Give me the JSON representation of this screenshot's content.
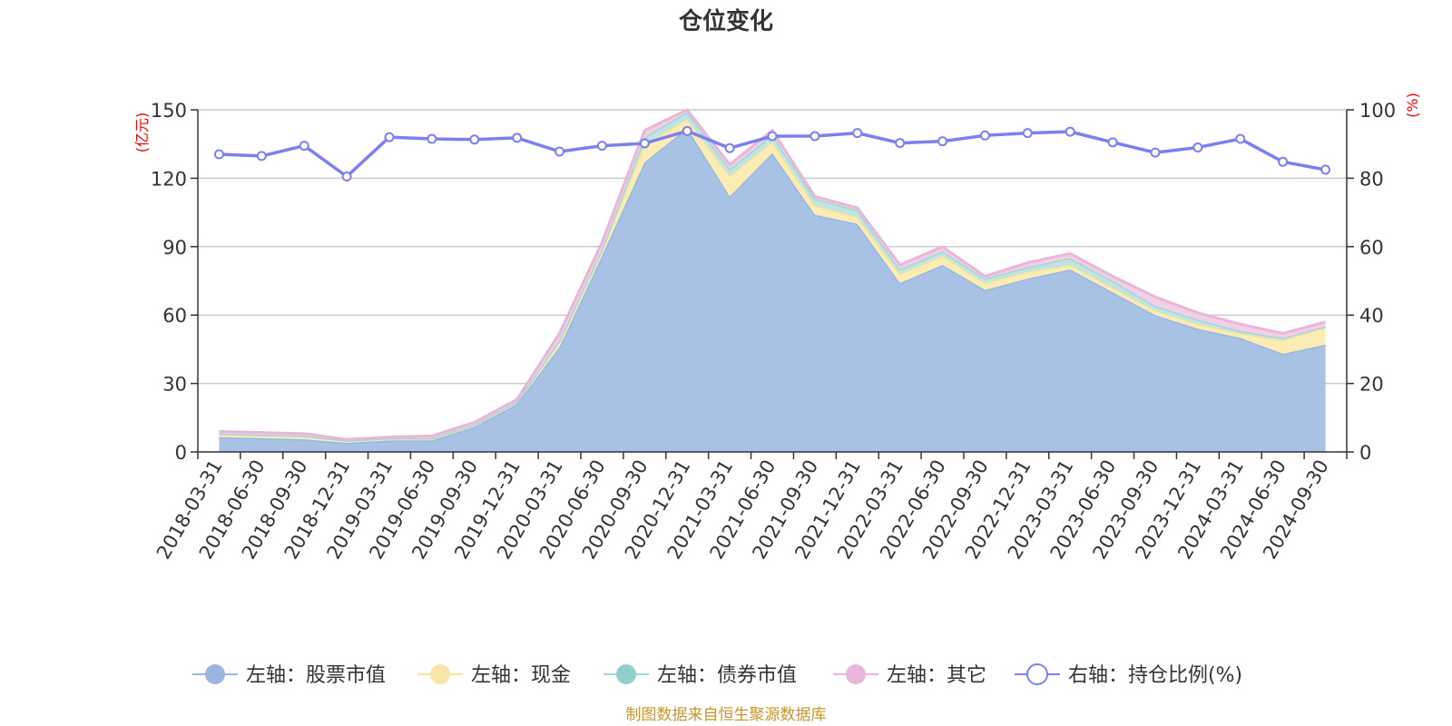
{
  "chart_data": {
    "type": "area",
    "title": "仓位变化",
    "source_note": "制图数据来自恒生聚源数据库",
    "left_unit": "(亿元)",
    "right_unit": "(%)",
    "left_axis": {
      "min": 0,
      "max": 150,
      "ticks": [
        "0",
        "30",
        "60",
        "90",
        "120",
        "150"
      ]
    },
    "right_axis": {
      "min": 0,
      "max": 100,
      "ticks": [
        "0",
        "20",
        "40",
        "60",
        "80",
        "100"
      ]
    },
    "categories": [
      "2018-03-31",
      "2018-06-30",
      "2018-09-30",
      "2018-12-31",
      "2019-03-31",
      "2019-06-30",
      "2019-09-30",
      "2019-12-31",
      "2020-03-31",
      "2020-06-30",
      "2020-09-30",
      "2020-12-31",
      "2021-03-31",
      "2021-06-30",
      "2021-09-30",
      "2021-12-31",
      "2022-03-31",
      "2022-06-30",
      "2022-09-30",
      "2022-12-31",
      "2023-03-31",
      "2023-06-30",
      "2023-09-30",
      "2023-12-31",
      "2024-03-31",
      "2024-06-30",
      "2024-09-30"
    ],
    "stacked_series": [
      {
        "name": "左轴：股票市值",
        "color": "#a8c2e6",
        "line": "#9ab6e0",
        "marker": "#9ab6e0",
        "values": [
          6.5,
          6.0,
          5.5,
          4.0,
          5.0,
          5.0,
          11,
          21,
          46,
          86,
          127,
          142,
          112,
          131,
          104,
          100,
          74,
          82,
          71,
          76,
          80,
          70,
          60,
          54,
          50,
          43,
          47
        ]
      },
      {
        "name": "左轴：现金",
        "color": "#fbecb4",
        "line": "#f5e3a0",
        "marker": "#f7e6a8",
        "values": [
          1.5,
          1.5,
          1.5,
          1.0,
          1.0,
          1.0,
          1.0,
          1.0,
          3,
          3,
          8,
          4,
          9,
          5,
          4,
          3,
          4,
          4,
          3,
          3,
          2,
          2,
          2,
          2,
          2,
          6,
          8
        ]
      },
      {
        "name": "左轴：债券市值",
        "color": "#bfe5e3",
        "line": "#9fd8d4",
        "marker": "#8fd0cd",
        "values": [
          0,
          0,
          0,
          0,
          0,
          0,
          0,
          0,
          0,
          0,
          3,
          3,
          3,
          3,
          3,
          3,
          2,
          2,
          2,
          2,
          3,
          3,
          2,
          2,
          1,
          1,
          0
        ]
      },
      {
        "name": "左轴：其它",
        "color": "#f1cfe7",
        "line": "#e9b6da",
        "marker": "#e9b6da",
        "values": [
          1.0,
          1.0,
          1.0,
          0.5,
          0.5,
          1.0,
          1.0,
          1.0,
          3,
          3,
          3,
          1,
          2,
          2,
          1,
          1,
          2,
          2,
          1,
          2,
          2,
          2,
          4,
          3,
          3,
          2,
          2
        ]
      }
    ],
    "line_series": {
      "name": "右轴：持仓比例(%)",
      "color": "#7b7ff0",
      "values": [
        87,
        86.5,
        89.5,
        80.5,
        92,
        91.5,
        91.3,
        91.8,
        87.8,
        89.5,
        90.2,
        93.8,
        88.8,
        92.3,
        92.3,
        93.2,
        90.3,
        90.8,
        92.5,
        93.2,
        93.6,
        90.5,
        87.5,
        89,
        91.5,
        84.8,
        82.5
      ]
    }
  }
}
